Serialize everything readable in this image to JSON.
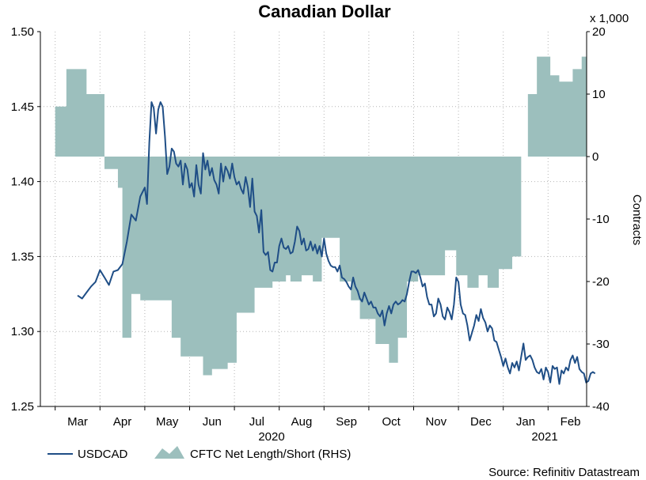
{
  "chart_data": {
    "type": "line",
    "title": "Canadian Dollar",
    "x_months": [
      "Mar",
      "Apr",
      "May",
      "Jun",
      "Jul",
      "Aug",
      "Sep",
      "Oct",
      "Nov",
      "Dec",
      "Jan",
      "Feb"
    ],
    "x_years": [
      "2020",
      "2021"
    ],
    "left_axis": {
      "ylim": [
        1.25,
        1.5
      ],
      "ticks": [
        "1.25",
        "1.30",
        "1.35",
        "1.40",
        "1.45",
        "1.50"
      ]
    },
    "right_axis": {
      "ylabel": "Contracts",
      "scale_label": "x 1,000",
      "ylim": [
        -40,
        20
      ],
      "ticks": [
        "-40",
        "-30",
        "-20",
        "-10",
        "0",
        "10",
        "20"
      ]
    },
    "source": "Source: Refinitiv Datastream",
    "colors": {
      "usdcad": "#1f4e86",
      "cftc": "#9cbfbd",
      "grid": "#b5b5b5"
    },
    "series": [
      {
        "name": "USDCAD",
        "type": "line",
        "axis": "left",
        "points": [
          [
            0.0,
            1.324
          ],
          [
            0.1,
            1.322
          ],
          [
            0.2,
            1.326
          ],
          [
            0.3,
            1.33
          ],
          [
            0.4,
            1.333
          ],
          [
            0.5,
            1.341
          ],
          [
            0.6,
            1.336
          ],
          [
            0.7,
            1.331
          ],
          [
            0.8,
            1.34
          ],
          [
            0.9,
            1.341
          ],
          [
            1.0,
            1.345
          ],
          [
            1.1,
            1.36
          ],
          [
            1.2,
            1.378
          ],
          [
            1.3,
            1.374
          ],
          [
            1.4,
            1.39
          ],
          [
            1.5,
            1.396
          ],
          [
            1.55,
            1.385
          ],
          [
            1.6,
            1.426
          ],
          [
            1.65,
            1.453
          ],
          [
            1.7,
            1.449
          ],
          [
            1.75,
            1.432
          ],
          [
            1.8,
            1.448
          ],
          [
            1.85,
            1.453
          ],
          [
            1.9,
            1.45
          ],
          [
            1.95,
            1.43
          ],
          [
            2.0,
            1.405
          ],
          [
            2.05,
            1.41
          ],
          [
            2.1,
            1.422
          ],
          [
            2.15,
            1.42
          ],
          [
            2.2,
            1.412
          ],
          [
            2.25,
            1.41
          ],
          [
            2.3,
            1.414
          ],
          [
            2.35,
            1.398
          ],
          [
            2.4,
            1.412
          ],
          [
            2.45,
            1.408
          ],
          [
            2.5,
            1.396
          ],
          [
            2.55,
            1.399
          ],
          [
            2.6,
            1.39
          ],
          [
            2.65,
            1.411
          ],
          [
            2.7,
            1.398
          ],
          [
            2.75,
            1.392
          ],
          [
            2.8,
            1.419
          ],
          [
            2.85,
            1.408
          ],
          [
            2.9,
            1.414
          ],
          [
            2.95,
            1.404
          ],
          [
            3.0,
            1.409
          ],
          [
            3.05,
            1.401
          ],
          [
            3.1,
            1.398
          ],
          [
            3.15,
            1.392
          ],
          [
            3.2,
            1.412
          ],
          [
            3.25,
            1.4
          ],
          [
            3.3,
            1.41
          ],
          [
            3.35,
            1.407
          ],
          [
            3.4,
            1.402
          ],
          [
            3.45,
            1.412
          ],
          [
            3.5,
            1.403
          ],
          [
            3.55,
            1.398
          ],
          [
            3.6,
            1.4
          ],
          [
            3.65,
            1.395
          ],
          [
            3.7,
            1.392
          ],
          [
            3.75,
            1.403
          ],
          [
            3.8,
            1.396
          ],
          [
            3.85,
            1.383
          ],
          [
            3.9,
            1.402
          ],
          [
            3.95,
            1.38
          ],
          [
            4.0,
            1.377
          ],
          [
            4.05,
            1.366
          ],
          [
            4.1,
            1.381
          ],
          [
            4.15,
            1.353
          ],
          [
            4.2,
            1.351
          ],
          [
            4.25,
            1.353
          ],
          [
            4.3,
            1.341
          ],
          [
            4.35,
            1.34
          ],
          [
            4.4,
            1.346
          ],
          [
            4.45,
            1.346
          ],
          [
            4.5,
            1.357
          ],
          [
            4.55,
            1.362
          ],
          [
            4.6,
            1.356
          ],
          [
            4.65,
            1.355
          ],
          [
            4.7,
            1.357
          ],
          [
            4.75,
            1.352
          ],
          [
            4.8,
            1.353
          ],
          [
            4.85,
            1.36
          ],
          [
            4.9,
            1.37
          ],
          [
            4.95,
            1.367
          ],
          [
            5.0,
            1.358
          ],
          [
            5.05,
            1.362
          ],
          [
            5.1,
            1.354
          ],
          [
            5.15,
            1.355
          ],
          [
            5.2,
            1.36
          ],
          [
            5.25,
            1.354
          ],
          [
            5.3,
            1.358
          ],
          [
            5.35,
            1.352
          ],
          [
            5.4,
            1.357
          ],
          [
            5.45,
            1.35
          ],
          [
            5.5,
            1.362
          ],
          [
            5.55,
            1.352
          ],
          [
            5.6,
            1.347
          ],
          [
            5.65,
            1.344
          ],
          [
            5.7,
            1.343
          ],
          [
            5.75,
            1.343
          ],
          [
            5.8,
            1.34
          ],
          [
            5.85,
            1.344
          ],
          [
            5.9,
            1.336
          ],
          [
            5.95,
            1.335
          ],
          [
            6.0,
            1.333
          ],
          [
            6.05,
            1.33
          ],
          [
            6.1,
            1.328
          ],
          [
            6.15,
            1.336
          ],
          [
            6.2,
            1.33
          ],
          [
            6.25,
            1.327
          ],
          [
            6.3,
            1.322
          ],
          [
            6.35,
            1.32
          ],
          [
            6.4,
            1.326
          ],
          [
            6.45,
            1.322
          ],
          [
            6.5,
            1.318
          ],
          [
            6.55,
            1.32
          ],
          [
            6.6,
            1.316
          ],
          [
            6.65,
            1.316
          ],
          [
            6.7,
            1.312
          ],
          [
            6.75,
            1.31
          ],
          [
            6.8,
            1.314
          ],
          [
            6.85,
            1.304
          ],
          [
            6.9,
            1.312
          ],
          [
            6.95,
            1.317
          ],
          [
            7.0,
            1.312
          ],
          [
            7.05,
            1.318
          ],
          [
            7.1,
            1.32
          ],
          [
            7.15,
            1.318
          ],
          [
            7.2,
            1.319
          ],
          [
            7.25,
            1.321
          ],
          [
            7.3,
            1.32
          ],
          [
            7.35,
            1.325
          ],
          [
            7.4,
            1.333
          ],
          [
            7.45,
            1.34
          ],
          [
            7.5,
            1.34
          ],
          [
            7.55,
            1.339
          ],
          [
            7.6,
            1.341
          ],
          [
            7.65,
            1.336
          ],
          [
            7.7,
            1.33
          ],
          [
            7.75,
            1.332
          ],
          [
            7.8,
            1.323
          ],
          [
            7.85,
            1.318
          ],
          [
            7.9,
            1.318
          ],
          [
            7.95,
            1.31
          ],
          [
            8.0,
            1.312
          ],
          [
            8.05,
            1.322
          ],
          [
            8.1,
            1.318
          ],
          [
            8.15,
            1.31
          ],
          [
            8.2,
            1.308
          ],
          [
            8.25,
            1.316
          ],
          [
            8.3,
            1.313
          ],
          [
            8.35,
            1.308
          ],
          [
            8.4,
            1.318
          ],
          [
            8.45,
            1.336
          ],
          [
            8.5,
            1.333
          ],
          [
            8.55,
            1.318
          ],
          [
            8.6,
            1.312
          ],
          [
            8.65,
            1.311
          ],
          [
            8.7,
            1.304
          ],
          [
            8.75,
            1.294
          ],
          [
            8.8,
            1.299
          ],
          [
            8.85,
            1.304
          ],
          [
            8.9,
            1.311
          ],
          [
            8.95,
            1.307
          ],
          [
            9.0,
            1.315
          ],
          [
            9.05,
            1.309
          ],
          [
            9.1,
            1.306
          ],
          [
            9.15,
            1.3
          ],
          [
            9.2,
            1.304
          ],
          [
            9.25,
            1.302
          ],
          [
            9.3,
            1.294
          ],
          [
            9.35,
            1.293
          ],
          [
            9.4,
            1.288
          ],
          [
            9.45,
            1.283
          ],
          [
            9.5,
            1.277
          ],
          [
            9.55,
            1.282
          ],
          [
            9.6,
            1.276
          ],
          [
            9.65,
            1.272
          ],
          [
            9.7,
            1.279
          ],
          [
            9.75,
            1.276
          ],
          [
            9.8,
            1.28
          ],
          [
            9.85,
            1.274
          ],
          [
            9.9,
            1.283
          ],
          [
            9.95,
            1.292
          ],
          [
            10.0,
            1.281
          ],
          [
            10.05,
            1.283
          ],
          [
            10.1,
            1.284
          ],
          [
            10.15,
            1.281
          ],
          [
            10.2,
            1.276
          ],
          [
            10.25,
            1.273
          ],
          [
            10.3,
            1.272
          ],
          [
            10.35,
            1.275
          ],
          [
            10.4,
            1.268
          ],
          [
            10.45,
            1.276
          ],
          [
            10.5,
            1.273
          ],
          [
            10.55,
            1.266
          ],
          [
            10.6,
            1.277
          ],
          [
            10.65,
            1.275
          ],
          [
            10.7,
            1.276
          ],
          [
            10.75,
            1.265
          ],
          [
            10.8,
            1.274
          ],
          [
            10.85,
            1.272
          ],
          [
            10.9,
            1.276
          ],
          [
            10.95,
            1.274
          ],
          [
            11.0,
            1.281
          ],
          [
            11.05,
            1.284
          ],
          [
            11.1,
            1.279
          ],
          [
            11.15,
            1.283
          ],
          [
            11.2,
            1.275
          ],
          [
            11.25,
            1.273
          ],
          [
            11.3,
            1.272
          ],
          [
            11.35,
            1.266
          ],
          [
            11.4,
            1.267
          ],
          [
            11.45,
            1.272
          ],
          [
            11.5,
            1.273
          ],
          [
            11.55,
            1.272
          ]
        ]
      },
      {
        "name": "CFTC Net Length/Short (RHS)",
        "type": "area",
        "axis": "right",
        "steps": [
          [
            -0.5,
            8
          ],
          [
            -0.25,
            14
          ],
          [
            0.0,
            14
          ],
          [
            0.2,
            10
          ],
          [
            0.4,
            10
          ],
          [
            0.6,
            -2
          ],
          [
            0.9,
            -5
          ],
          [
            1.0,
            -29
          ],
          [
            1.2,
            -22
          ],
          [
            1.4,
            -23
          ],
          [
            1.6,
            -23
          ],
          [
            1.85,
            -23
          ],
          [
            2.1,
            -29
          ],
          [
            2.3,
            -32
          ],
          [
            2.55,
            -32
          ],
          [
            2.8,
            -35
          ],
          [
            3.0,
            -34
          ],
          [
            3.15,
            -34
          ],
          [
            3.35,
            -33
          ],
          [
            3.55,
            -25
          ],
          [
            3.95,
            -21
          ],
          [
            4.35,
            -20
          ],
          [
            4.65,
            -19
          ],
          [
            4.75,
            -20
          ],
          [
            4.85,
            -20
          ],
          [
            5.0,
            -19
          ],
          [
            5.25,
            -20
          ],
          [
            5.45,
            -13
          ],
          [
            5.65,
            -13
          ],
          [
            5.85,
            -20
          ],
          [
            6.1,
            -23
          ],
          [
            6.3,
            -26
          ],
          [
            6.65,
            -30
          ],
          [
            6.95,
            -33
          ],
          [
            7.15,
            -29
          ],
          [
            7.35,
            -20
          ],
          [
            7.6,
            -19
          ],
          [
            7.95,
            -19
          ],
          [
            8.2,
            -15
          ],
          [
            8.45,
            -19
          ],
          [
            8.7,
            -21
          ],
          [
            8.95,
            -19
          ],
          [
            9.15,
            -21
          ],
          [
            9.4,
            -18
          ],
          [
            9.5,
            -18
          ],
          [
            9.7,
            -16
          ],
          [
            9.9,
            0
          ],
          [
            10.05,
            10
          ],
          [
            10.25,
            16
          ],
          [
            10.4,
            16
          ],
          [
            10.55,
            13
          ],
          [
            10.75,
            12
          ],
          [
            10.95,
            12
          ],
          [
            11.05,
            14
          ],
          [
            11.25,
            16
          ],
          [
            11.4,
            16
          ],
          [
            11.5,
            10
          ],
          [
            11.6,
            8
          ],
          [
            11.75,
            8
          ]
        ]
      }
    ]
  }
}
